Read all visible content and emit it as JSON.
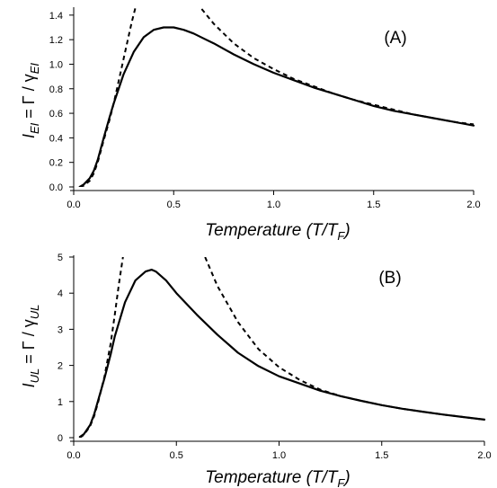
{
  "chart_data": [
    {
      "type": "line",
      "panel_label": "(A)",
      "xlabel_main": "Temperature (",
      "xlabel_var": "T",
      "xlabel_slash": "/",
      "xlabel_sub_base": "T",
      "xlabel_sub": "F",
      "xlabel_close": ")",
      "ylabel_parts": [
        "I",
        "EI",
        " = Γ / γ",
        "EI"
      ],
      "xlim": [
        0,
        2.0
      ],
      "ylim": [
        0,
        1.45
      ],
      "xticks": [
        0.0,
        0.5,
        1.0,
        1.5,
        2.0
      ],
      "xtick_labels": [
        "0.0",
        "0.5",
        "1.0",
        "1.5",
        "2.0"
      ],
      "yticks": [
        0.0,
        0.2,
        0.4,
        0.6,
        0.8,
        1.0,
        1.2,
        1.4
      ],
      "ytick_labels": [
        "0.0",
        "0.2",
        "0.4",
        "0.6",
        "0.8",
        "1.0",
        "1.2",
        "1.4"
      ],
      "series": [
        {
          "style": "solid",
          "x": [
            0.03,
            0.05,
            0.08,
            0.1,
            0.12,
            0.15,
            0.18,
            0.2,
            0.25,
            0.3,
            0.35,
            0.4,
            0.45,
            0.5,
            0.55,
            0.6,
            0.65,
            0.7,
            0.8,
            0.9,
            1.0,
            1.1,
            1.2,
            1.3,
            1.4,
            1.5,
            1.6,
            1.7,
            1.8,
            1.9,
            2.0
          ],
          "y": [
            0.0,
            0.02,
            0.07,
            0.13,
            0.22,
            0.4,
            0.57,
            0.68,
            0.92,
            1.1,
            1.22,
            1.28,
            1.3,
            1.3,
            1.28,
            1.25,
            1.21,
            1.17,
            1.08,
            1.0,
            0.93,
            0.87,
            0.81,
            0.76,
            0.71,
            0.66,
            0.62,
            0.59,
            0.56,
            0.53,
            0.5
          ]
        },
        {
          "style": "dashed",
          "x": [
            0.03,
            0.05,
            0.08,
            0.1,
            0.12,
            0.15,
            0.18,
            0.2,
            0.23,
            0.26,
            0.29,
            0.31
          ],
          "y": [
            0.0,
            0.01,
            0.05,
            0.11,
            0.2,
            0.38,
            0.55,
            0.68,
            0.9,
            1.12,
            1.34,
            1.47
          ]
        },
        {
          "style": "dashed",
          "x": [
            0.64,
            0.7,
            0.8,
            0.9,
            1.0,
            1.1,
            1.2,
            1.3,
            1.4,
            1.5,
            1.6,
            1.7,
            1.8,
            1.9,
            2.0
          ],
          "y": [
            1.45,
            1.33,
            1.17,
            1.05,
            0.96,
            0.88,
            0.82,
            0.76,
            0.71,
            0.67,
            0.63,
            0.59,
            0.56,
            0.53,
            0.51
          ]
        }
      ]
    },
    {
      "type": "line",
      "panel_label": "(B)",
      "xlabel_main": "Temperature (",
      "xlabel_var": "T",
      "xlabel_slash": "/",
      "xlabel_sub_base": "T",
      "xlabel_sub": "F",
      "xlabel_close": ")",
      "ylabel_parts": [
        "I",
        "UL",
        " = Γ / γ",
        "UL"
      ],
      "xlim": [
        0,
        2.0
      ],
      "ylim": [
        0,
        5.0
      ],
      "xticks": [
        0.0,
        0.5,
        1.0,
        1.5,
        2.0
      ],
      "xtick_labels": [
        "0.0",
        "0.5",
        "1.0",
        "1.5",
        "2.0"
      ],
      "yticks": [
        0,
        1,
        2,
        3,
        4,
        5
      ],
      "ytick_labels": [
        "0",
        "1",
        "2",
        "3",
        "4",
        "5"
      ],
      "series": [
        {
          "style": "solid",
          "x": [
            0.03,
            0.05,
            0.08,
            0.1,
            0.12,
            0.15,
            0.18,
            0.2,
            0.25,
            0.3,
            0.35,
            0.38,
            0.4,
            0.45,
            0.5,
            0.55,
            0.6,
            0.7,
            0.8,
            0.9,
            1.0,
            1.1,
            1.2,
            1.3,
            1.4,
            1.5,
            1.6,
            1.7,
            1.8,
            1.9,
            2.0
          ],
          "y": [
            0.02,
            0.1,
            0.35,
            0.65,
            1.05,
            1.65,
            2.3,
            2.8,
            3.75,
            4.35,
            4.6,
            4.65,
            4.6,
            4.35,
            4.0,
            3.7,
            3.4,
            2.85,
            2.35,
            1.98,
            1.7,
            1.5,
            1.3,
            1.15,
            1.02,
            0.9,
            0.8,
            0.72,
            0.64,
            0.57,
            0.5
          ]
        },
        {
          "style": "dashed",
          "x": [
            0.03,
            0.05,
            0.08,
            0.1,
            0.12,
            0.15,
            0.18,
            0.2,
            0.22,
            0.24
          ],
          "y": [
            0.0,
            0.08,
            0.32,
            0.6,
            1.0,
            1.7,
            2.6,
            3.4,
            4.25,
            5.0
          ]
        },
        {
          "style": "dashed",
          "x": [
            0.64,
            0.7,
            0.8,
            0.9,
            1.0,
            1.1,
            1.2,
            1.3,
            1.4,
            1.5,
            1.6,
            1.7,
            1.8,
            1.9,
            2.0
          ],
          "y": [
            5.0,
            4.2,
            3.2,
            2.45,
            1.95,
            1.6,
            1.33,
            1.15,
            1.02,
            0.9,
            0.8,
            0.72,
            0.64,
            0.57,
            0.5
          ]
        }
      ]
    }
  ]
}
